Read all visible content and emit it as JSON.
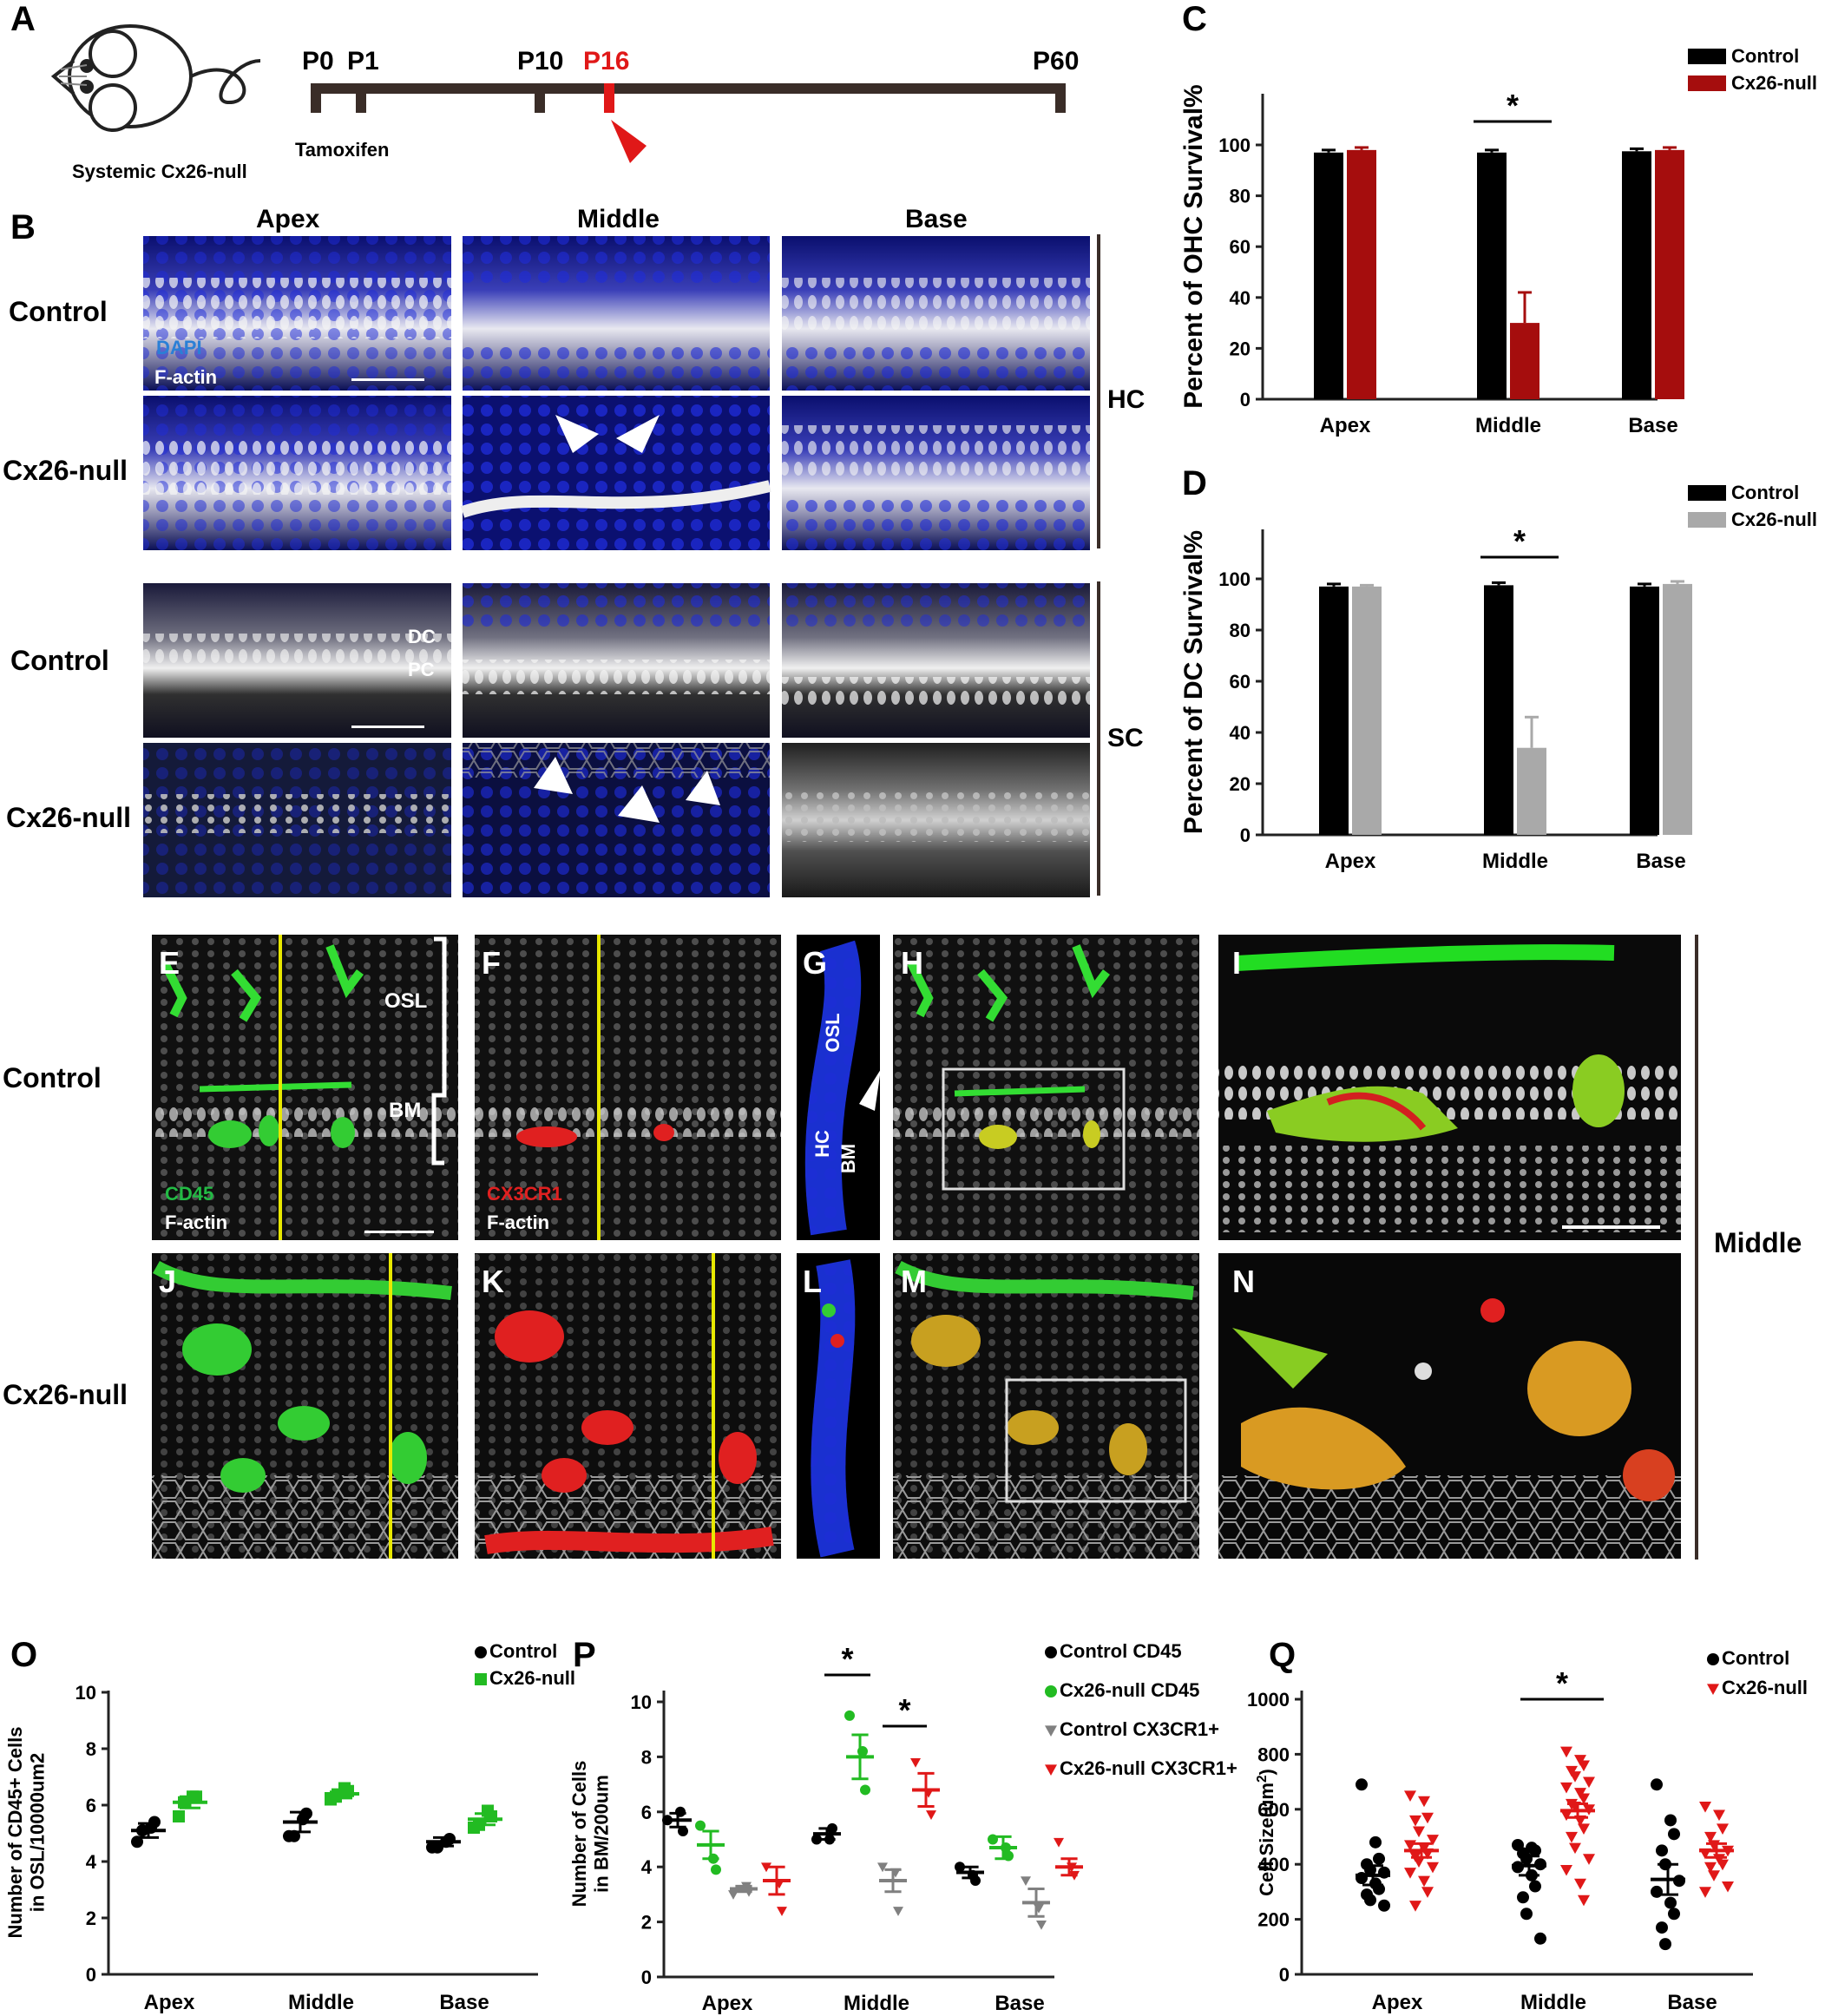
{
  "panel_letters": {
    "A": "A",
    "B": "B",
    "C": "C",
    "D": "D",
    "E": "E",
    "F": "F",
    "G": "G",
    "H": "H",
    "I": "I",
    "J": "J",
    "K": "K",
    "L": "L",
    "M": "M",
    "N": "N",
    "O": "O",
    "P": "P",
    "Q": "Q"
  },
  "timeline": {
    "mouse_label": "Systemic Cx26-null",
    "ticks": [
      {
        "label": "P0",
        "red": false
      },
      {
        "label": "P1",
        "red": false
      },
      {
        "label": "P10",
        "red": false
      },
      {
        "label": "P16",
        "red": true
      },
      {
        "label": "P60",
        "red": false
      }
    ],
    "tamoxifen": "Tamoxifen"
  },
  "panelB": {
    "columns": [
      "Apex",
      "Middle",
      "Base"
    ],
    "rows": [
      "Control",
      "Cx26-null",
      "Control",
      "Cx26-null"
    ],
    "groups": [
      "HC",
      "SC"
    ],
    "stain_dapi": "DAPI",
    "stain_factin": "F-actin",
    "dc": "DC",
    "pc": "PC"
  },
  "panelE": {
    "rows": [
      "Control",
      "Cx26-null"
    ],
    "side": "Middle",
    "osl": "OSL",
    "bm": "BM",
    "hc": "HC",
    "cd45": "CD45",
    "cx3cr1": "CX3CR1",
    "factin": "F-actin"
  },
  "chart_data": [
    {
      "id": "C",
      "type": "bar",
      "categories": [
        "Apex",
        "Middle",
        "Base"
      ],
      "ylabel": "Percent of OHC Survival%",
      "ylim": [
        0,
        100
      ],
      "yticks": [
        0,
        20,
        40,
        60,
        80,
        100
      ],
      "series": [
        {
          "name": "Control",
          "color": "#000000",
          "values": [
            97,
            97,
            97.5
          ],
          "err": [
            1,
            1,
            1
          ]
        },
        {
          "name": "Cx26-null",
          "color": "#a50d0d",
          "values": [
            98,
            30,
            98
          ],
          "err": [
            1,
            12,
            1
          ]
        }
      ],
      "significance": [
        {
          "category": "Middle",
          "label": "*"
        }
      ]
    },
    {
      "id": "D",
      "type": "bar",
      "categories": [
        "Apex",
        "Middle",
        "Base"
      ],
      "ylabel": "Percent of DC Survival%",
      "ylim": [
        0,
        100
      ],
      "yticks": [
        0,
        20,
        40,
        60,
        80,
        100
      ],
      "series": [
        {
          "name": "Control",
          "color": "#000000",
          "values": [
            97,
            97.5,
            97
          ],
          "err": [
            1,
            1,
            1
          ]
        },
        {
          "name": "Cx26-null",
          "color": "#a9a9a9",
          "values": [
            97,
            34,
            98
          ],
          "err": [
            0.5,
            12,
            1
          ]
        }
      ],
      "significance": [
        {
          "category": "Middle",
          "label": "*"
        }
      ]
    },
    {
      "id": "O",
      "type": "scatter",
      "categories": [
        "Apex",
        "Middle",
        "Base"
      ],
      "ylabel": "Number of CD45+ Cells in OSL/10000um2",
      "ylim": [
        0,
        10
      ],
      "yticks": [
        0,
        2,
        4,
        6,
        8,
        10
      ],
      "series": [
        {
          "name": "Control",
          "color": "#000000",
          "marker": "circle",
          "points": [
            [
              4.7,
              5.2,
              5.4,
              5.1
            ],
            [
              4.9,
              5.5,
              5.7,
              4.9
            ],
            [
              4.5,
              4.7,
              4.8,
              4.5
            ]
          ],
          "mean": [
            5.1,
            5.4,
            4.7
          ],
          "sem": [
            0.25,
            0.35,
            0.15
          ]
        },
        {
          "name": "Cx26-null",
          "color": "#22bb22",
          "marker": "square",
          "points": [
            [
              5.6,
              6.3,
              6.3,
              6.1
            ],
            [
              6.2,
              6.6,
              6.5,
              6.3
            ],
            [
              5.2,
              5.8,
              5.6,
              5.3
            ]
          ],
          "mean": [
            6.1,
            6.4,
            5.5
          ],
          "sem": [
            0.2,
            0.15,
            0.2
          ]
        }
      ]
    },
    {
      "id": "P",
      "type": "scatter",
      "categories": [
        "Apex",
        "Middle",
        "Base"
      ],
      "ylabel": "Number of Cells in BM/200um",
      "ylim": [
        0,
        10
      ],
      "yticks": [
        0,
        2,
        4,
        6,
        8,
        10
      ],
      "series": [
        {
          "name": "Control CD45",
          "color": "#000000",
          "marker": "circle",
          "points": [
            [
              5.7,
              6.0,
              5.3
            ],
            [
              5.0,
              5.0,
              5.4
            ],
            [
              4.0,
              3.7,
              3.5
            ]
          ],
          "mean": [
            5.7,
            5.2,
            3.8
          ],
          "sem": [
            0.25,
            0.2,
            0.2
          ]
        },
        {
          "name": "Cx26-null CD45",
          "color": "#22bb22",
          "marker": "circle",
          "points": [
            [
              5.5,
              4.3,
              3.9
            ],
            [
              9.5,
              8.2,
              6.8
            ],
            [
              5.0,
              4.7,
              4.4
            ]
          ],
          "mean": [
            4.8,
            8.0,
            4.7
          ],
          "sem": [
            0.5,
            0.8,
            0.4
          ]
        },
        {
          "name": "Control CX3CR1+",
          "color": "#808080",
          "marker": "triangle",
          "points": [
            [
              3.0,
              3.3,
              3.1
            ],
            [
              4.0,
              3.8,
              2.4
            ],
            [
              3.5,
              2.5,
              1.9
            ]
          ],
          "mean": [
            3.2,
            3.5,
            2.7
          ],
          "sem": [
            0.1,
            0.4,
            0.5
          ]
        },
        {
          "name": "Cx26-null CX3CR1+",
          "color": "#e01818",
          "marker": "triangle",
          "points": [
            [
              4.0,
              3.4,
              2.4
            ],
            [
              7.8,
              6.7,
              5.9
            ],
            [
              4.9,
              4.0,
              3.7
            ]
          ],
          "mean": [
            3.5,
            6.8,
            4.0
          ],
          "sem": [
            0.5,
            0.6,
            0.3
          ]
        }
      ],
      "significance": [
        {
          "category": "Middle",
          "label": "*",
          "between": "CD45"
        },
        {
          "category": "Middle",
          "label": "*",
          "between": "CX3CR1+"
        }
      ]
    },
    {
      "id": "Q",
      "type": "scatter",
      "categories": [
        "Apex",
        "Middle",
        "Base"
      ],
      "ylabel": "Cell Size(um",
      "ylabel_sup": "2",
      "ylabel_close": ")",
      "ylim": [
        0,
        1000
      ],
      "yticks": [
        0,
        200,
        400,
        600,
        800,
        1000
      ],
      "series": [
        {
          "name": "Control",
          "color": "#000000",
          "marker": "circle",
          "points": [
            [
              690,
              480,
              420,
              400,
              380,
              370,
              350,
              330,
              310,
              290,
              270,
              250
            ],
            [
              470,
              460,
              450,
              440,
              420,
              400,
              390,
              360,
              320,
              280,
              220,
              130
            ],
            [
              690,
              560,
              510,
              450,
              400,
              340,
              300,
              260,
              220,
              170,
              110
            ]
          ],
          "mean": [
            360,
            395,
            345
          ],
          "sem": [
            35,
            35,
            55
          ]
        },
        {
          "name": "Cx26-null",
          "color": "#e01818",
          "marker": "triangle",
          "points": [
            [
              650,
              630,
              570,
              560,
              520,
              490,
              470,
              460,
              440,
              430,
              410,
              390,
              370,
              340,
              300,
              250
            ],
            [
              810,
              780,
              760,
              740,
              720,
              700,
              680,
              660,
              640,
              620,
              610,
              600,
              580,
              560,
              530,
              500,
              460,
              420,
              380,
              330,
              270
            ],
            [
              610,
              580,
              530,
              500,
              470,
              450,
              440,
              420,
              400,
              390,
              360,
              320,
              300
            ]
          ],
          "mean": [
            450,
            595,
            450
          ],
          "sem": [
            25,
            25,
            25
          ]
        }
      ],
      "significance": [
        {
          "category": "Middle",
          "label": "*"
        }
      ]
    }
  ]
}
